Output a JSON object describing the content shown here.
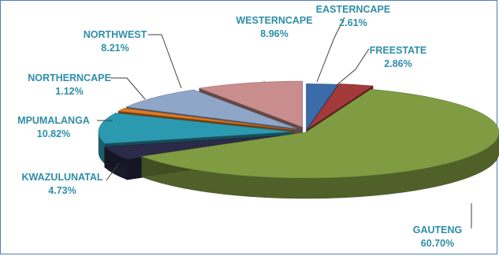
{
  "chart_data": {
    "type": "pie",
    "variant": "3d-exploded",
    "title": "",
    "slices": [
      {
        "label": "EASTERNCAPE",
        "value_label": "2.61%",
        "value": 2.61,
        "color": "#3b6ba8"
      },
      {
        "label": "FREESTATE",
        "value_label": "2.86%",
        "value": 2.86,
        "color": "#a33a3a"
      },
      {
        "label": "GAUTENG",
        "value_label": "60.70%",
        "value": 60.7,
        "color": "#7f9c42"
      },
      {
        "label": "KWAZULUNATAL",
        "value_label": "4.73%",
        "value": 4.73,
        "color": "#2b2a48"
      },
      {
        "label": "MPUMALANGA",
        "value_label": "10.82%",
        "value": 10.82,
        "color": "#2b9ab0"
      },
      {
        "label": "NORTHERNCAPE",
        "value_label": "1.12%",
        "value": 1.12,
        "color": "#e07b22"
      },
      {
        "label": "NORTHWEST",
        "value_label": "8.21%",
        "value": 8.21,
        "color": "#8fa6c8"
      },
      {
        "label": "WESTERNCAPE",
        "value_label": "8.96%",
        "value": 8.96,
        "color": "#c98d8d"
      }
    ],
    "legend": "none",
    "label_color": "#2e8ea8"
  }
}
